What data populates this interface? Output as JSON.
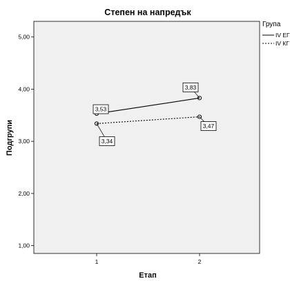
{
  "chart_data": {
    "type": "line",
    "title": "Степен на напредък",
    "xlabel": "Етап",
    "ylabel": "Подгрупи",
    "categories": [
      "1",
      "2"
    ],
    "yticks": [
      "1,00",
      "2,00",
      "3,00",
      "4,00",
      "5,00"
    ],
    "ylim": [
      0.85,
      5.3
    ],
    "grid": false,
    "legend": {
      "title": "Група",
      "placement": "right",
      "entries": [
        "IV ЕГ",
        "IV КГ"
      ]
    },
    "series": [
      {
        "name": "IV ЕГ",
        "values": [
          3.53,
          3.83
        ],
        "labels": [
          "3,53",
          "3,83"
        ],
        "style": "solid"
      },
      {
        "name": "IV КГ",
        "values": [
          3.34,
          3.47
        ],
        "labels": [
          "3,34",
          "3,47"
        ],
        "style": "dotted"
      }
    ],
    "colors": {
      "plot_background": "#f0f0f0",
      "line": "#000000"
    }
  }
}
